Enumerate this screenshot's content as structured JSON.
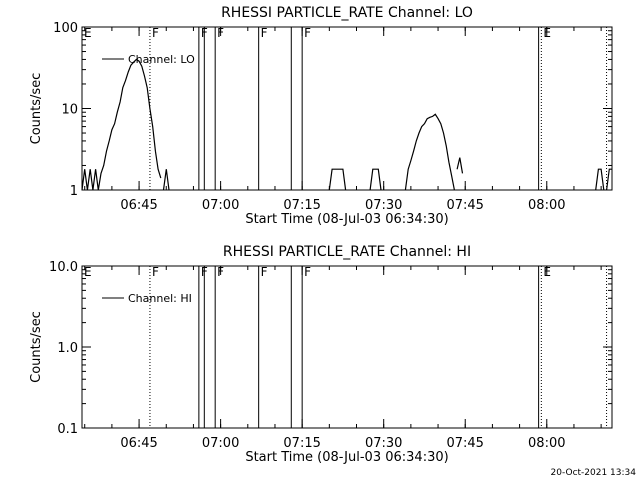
{
  "footer_timestamp": "20-Oct-2021 13:34",
  "chart_data": [
    {
      "type": "line",
      "title": "RHESSI PARTICLE_RATE Channel: LO",
      "xlabel": "Start Time (08-Jul-03 06:34:30)",
      "ylabel": "Counts/sec",
      "y_scale": "log",
      "xlim": [
        "06:34:30",
        "08:12:00"
      ],
      "ylim": [
        1,
        100
      ],
      "x_ticks": [
        "06:45",
        "07:00",
        "07:15",
        "07:30",
        "07:45",
        "08:00"
      ],
      "y_ticks": [
        "1",
        "10",
        "100"
      ],
      "legend": {
        "label": "Channel: LO",
        "placement": "top-left"
      },
      "event_markers": [
        {
          "label": "E",
          "time": "06:34:30",
          "style": "solid"
        },
        {
          "label": "F",
          "time": "06:47:00",
          "style": "dotted"
        },
        {
          "label": "F",
          "time": "06:56:00",
          "style": "solid"
        },
        {
          "label": "",
          "time": "06:57:00",
          "style": "solid"
        },
        {
          "label": "F",
          "time": "06:59:00",
          "style": "solid"
        },
        {
          "label": "F",
          "time": "07:07:00",
          "style": "solid"
        },
        {
          "label": "",
          "time": "07:13:00",
          "style": "solid"
        },
        {
          "label": "F",
          "time": "07:15:00",
          "style": "solid"
        },
        {
          "label": "",
          "time": "07:58:30",
          "style": "solid"
        },
        {
          "label": "E",
          "time": "07:59:00",
          "style": "dotted"
        },
        {
          "label": "",
          "time": "08:11:00",
          "style": "dotted"
        }
      ],
      "series": [
        {
          "segments": [
            [
              [
                "06:34:30",
                1
              ],
              [
                "06:35:00",
                1.8
              ],
              [
                "06:35:30",
                1
              ],
              [
                "06:36:00",
                1.8
              ],
              [
                "06:36:30",
                1
              ],
              [
                "06:37:00",
                1.8
              ],
              [
                "06:37:30",
                1
              ],
              [
                "06:38:00",
                1.6
              ],
              [
                "06:38:30",
                2
              ],
              [
                "06:39:00",
                3
              ],
              [
                "06:39:30",
                4
              ],
              [
                "06:40:00",
                5.5
              ],
              [
                "06:40:30",
                6.5
              ],
              [
                "06:41:00",
                9
              ],
              [
                "06:41:30",
                12
              ],
              [
                "06:42:00",
                18
              ],
              [
                "06:42:30",
                22
              ],
              [
                "06:43:00",
                28
              ],
              [
                "06:43:30",
                34
              ],
              [
                "06:44:00",
                37
              ],
              [
                "06:44:30",
                40
              ],
              [
                "06:45:00",
                38
              ],
              [
                "06:45:30",
                33
              ],
              [
                "06:46:00",
                25
              ],
              [
                "06:46:30",
                18
              ],
              [
                "06:47:00",
                10
              ],
              [
                "06:47:30",
                6
              ],
              [
                "06:48:00",
                3
              ],
              [
                "06:48:30",
                1.8
              ],
              [
                "06:49:00",
                1.4
              ]
            ],
            [
              [
                "06:49:30",
                1
              ],
              [
                "06:50:00",
                1.8
              ],
              [
                "06:50:30",
                1
              ]
            ],
            [
              [
                "07:20:00",
                1
              ],
              [
                "07:20:30",
                1.8
              ],
              [
                "07:22:30",
                1.8
              ],
              [
                "07:23:00",
                1
              ]
            ],
            [
              [
                "07:27:30",
                1
              ],
              [
                "07:28:00",
                1.8
              ],
              [
                "07:29:00",
                1.8
              ],
              [
                "07:29:30",
                1
              ]
            ],
            [
              [
                "07:34:00",
                1
              ],
              [
                "07:34:30",
                1.8
              ],
              [
                "07:35:00",
                2.3
              ],
              [
                "07:35:30",
                3
              ],
              [
                "07:36:00",
                4
              ],
              [
                "07:36:30",
                5
              ],
              [
                "07:37:00",
                6
              ],
              [
                "07:37:30",
                6.5
              ],
              [
                "07:38:00",
                7.5
              ],
              [
                "07:38:30",
                7.8
              ],
              [
                "07:39:00",
                8
              ],
              [
                "07:39:30",
                8.5
              ],
              [
                "07:40:00",
                7.5
              ],
              [
                "07:40:30",
                6.5
              ],
              [
                "07:41:00",
                5
              ],
              [
                "07:41:30",
                3.5
              ],
              [
                "07:42:00",
                2.2
              ],
              [
                "07:42:30",
                1.5
              ],
              [
                "07:43:00",
                1
              ]
            ],
            [
              [
                "07:43:30",
                1.8
              ],
              [
                "07:44:00",
                2.5
              ],
              [
                "07:44:30",
                1.6
              ]
            ],
            [
              [
                "08:09:00",
                1
              ],
              [
                "08:09:30",
                1.8
              ],
              [
                "08:10:00",
                1.8
              ],
              [
                "08:10:30",
                1
              ]
            ],
            [
              [
                "08:11:00",
                1
              ],
              [
                "08:11:30",
                1.8
              ],
              [
                "08:12:00",
                1.8
              ]
            ]
          ]
        }
      ]
    },
    {
      "type": "line",
      "title": "RHESSI PARTICLE_RATE Channel: HI",
      "xlabel": "Start Time (08-Jul-03 06:34:30)",
      "ylabel": "Counts/sec",
      "y_scale": "log",
      "xlim": [
        "06:34:30",
        "08:12:00"
      ],
      "ylim": [
        0.1,
        10
      ],
      "x_ticks": [
        "06:45",
        "07:00",
        "07:15",
        "07:30",
        "07:45",
        "08:00"
      ],
      "y_ticks": [
        "0.1",
        "1.0",
        "10.0"
      ],
      "legend": {
        "label": "Channel: HI",
        "placement": "top-left"
      },
      "event_markers": [
        {
          "label": "E",
          "time": "06:34:30",
          "style": "solid"
        },
        {
          "label": "F",
          "time": "06:47:00",
          "style": "dotted"
        },
        {
          "label": "F",
          "time": "06:56:00",
          "style": "solid"
        },
        {
          "label": "",
          "time": "06:57:00",
          "style": "solid"
        },
        {
          "label": "F",
          "time": "06:59:00",
          "style": "solid"
        },
        {
          "label": "F",
          "time": "07:07:00",
          "style": "solid"
        },
        {
          "label": "",
          "time": "07:13:00",
          "style": "solid"
        },
        {
          "label": "F",
          "time": "07:15:00",
          "style": "solid"
        },
        {
          "label": "",
          "time": "07:58:30",
          "style": "solid"
        },
        {
          "label": "E",
          "time": "07:59:00",
          "style": "dotted"
        },
        {
          "label": "",
          "time": "08:11:00",
          "style": "dotted"
        }
      ],
      "series": [
        {
          "segments": []
        }
      ]
    }
  ]
}
